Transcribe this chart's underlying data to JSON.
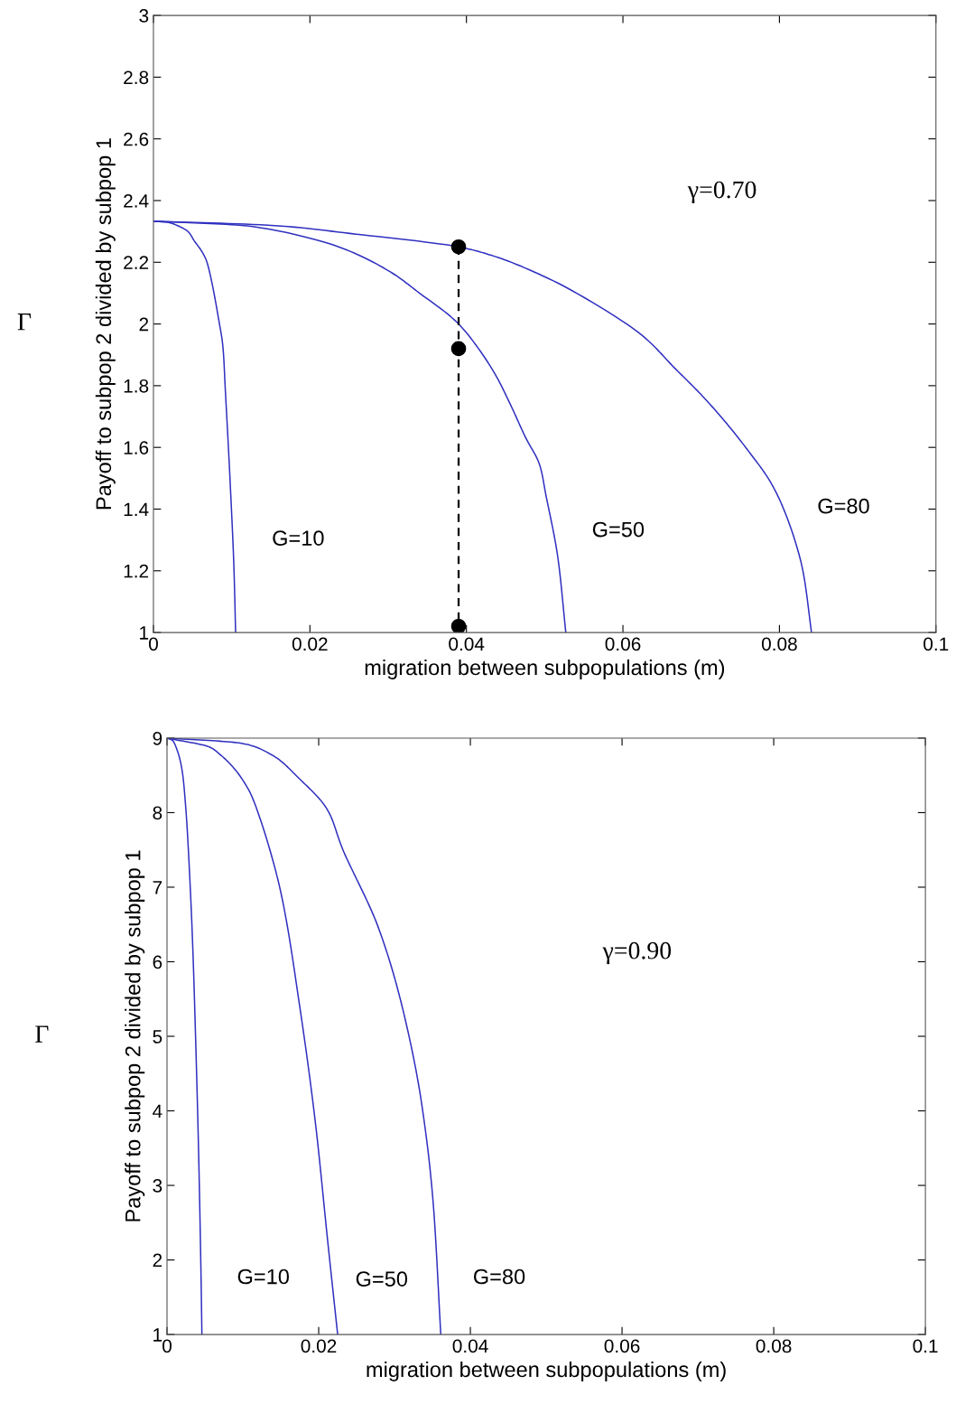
{
  "chart_data": [
    {
      "type": "line",
      "xlabel": "migration between subpopulations (m)",
      "ylabel": "Payoff to subpop 2 divided by subpop 1",
      "xlim": [
        0,
        0.1
      ],
      "ylim": [
        1,
        3
      ],
      "xticks": [
        0,
        0.02,
        0.04,
        0.06,
        0.08,
        0.1
      ],
      "yticks": [
        1,
        1.2,
        1.4,
        1.6,
        1.8,
        2,
        2.2,
        2.4,
        2.6,
        2.8,
        3
      ],
      "grid": false,
      "series": [
        {
          "name": "G=10",
          "color": "#3030c0",
          "x": [
            0,
            0.0017,
            0.0044,
            0.0052,
            0.0067,
            0.0083,
            0.0089,
            0.0092,
            0.0098,
            0.0103,
            0.0105
          ],
          "values": [
            2.333,
            2.33,
            2.3,
            2.27,
            2.21,
            2.02,
            1.92,
            1.78,
            1.49,
            1.2,
            1
          ]
        },
        {
          "name": "G=50",
          "color": "#3030c0",
          "x": [
            0,
            0.011,
            0.0225,
            0.0302,
            0.034,
            0.039,
            0.0436,
            0.0456,
            0.0475,
            0.0494,
            0.0502,
            0.0517,
            0.0527
          ],
          "values": [
            2.333,
            2.32,
            2.26,
            2.17,
            2.1,
            2.0,
            1.84,
            1.74,
            1.635,
            1.54,
            1.44,
            1.24,
            1
          ]
        },
        {
          "name": "G=80",
          "color": "#3030c0",
          "x": [
            0,
            0.0148,
            0.0263,
            0.039,
            0.0435,
            0.0511,
            0.0626,
            0.0665,
            0.0704,
            0.0735,
            0.0761,
            0.0788,
            0.0807,
            0.083,
            0.0841
          ],
          "values": [
            2.333,
            2.32,
            2.29,
            2.25,
            2.22,
            2.14,
            1.96,
            1.86,
            1.76,
            1.67,
            1.586,
            1.49,
            1.39,
            1.2,
            1
          ]
        },
        {
          "color": "#000000",
          "x": [
            0.039,
            0.039,
            0.039
          ],
          "values": [
            2.25,
            1.92,
            1.02
          ],
          "marker": "circle",
          "line_style": "dashed"
        }
      ],
      "annotations": [
        "γ=0.70",
        "Γ"
      ]
    },
    {
      "type": "line",
      "xlabel": "migration between subpopulations (m)",
      "ylabel": "Payoff to subpop 2 divided by subpop 1",
      "xlim": [
        0,
        0.1
      ],
      "ylim": [
        1,
        9
      ],
      "xticks": [
        0,
        0.02,
        0.04,
        0.06,
        0.08,
        0.1
      ],
      "yticks": [
        1,
        2,
        3,
        4,
        5,
        6,
        7,
        8,
        9
      ],
      "grid": false,
      "series": [
        {
          "name": "G=10",
          "color": "#3030c0",
          "x": [
            0,
            0.0007,
            0.0014,
            0.002,
            0.0025,
            0.0033,
            0.0038,
            0.0042,
            0.0045,
            0.0046
          ],
          "values": [
            9,
            8.97,
            8.82,
            8.56,
            8.03,
            6.45,
            4.87,
            3.29,
            1.7,
            1
          ]
        },
        {
          "name": "G=50",
          "color": "#3030c0",
          "x": [
            0,
            0.0056,
            0.0071,
            0.0087,
            0.0108,
            0.0149,
            0.0175,
            0.0196,
            0.0212,
            0.0225
          ],
          "values": [
            9,
            8.88,
            8.77,
            8.61,
            8.3,
            6.98,
            5.4,
            3.81,
            2.24,
            1
          ]
        },
        {
          "name": "G=80",
          "color": "#3030c0",
          "x": [
            0,
            0.0098,
            0.0139,
            0.0175,
            0.0212,
            0.0232,
            0.0279,
            0.031,
            0.0336,
            0.0351,
            0.0361
          ],
          "values": [
            9,
            8.93,
            8.77,
            8.45,
            8.03,
            7.5,
            6.45,
            5.4,
            4.08,
            2.76,
            1
          ]
        }
      ],
      "annotations": [
        "γ=0.90",
        "Γ"
      ]
    }
  ]
}
